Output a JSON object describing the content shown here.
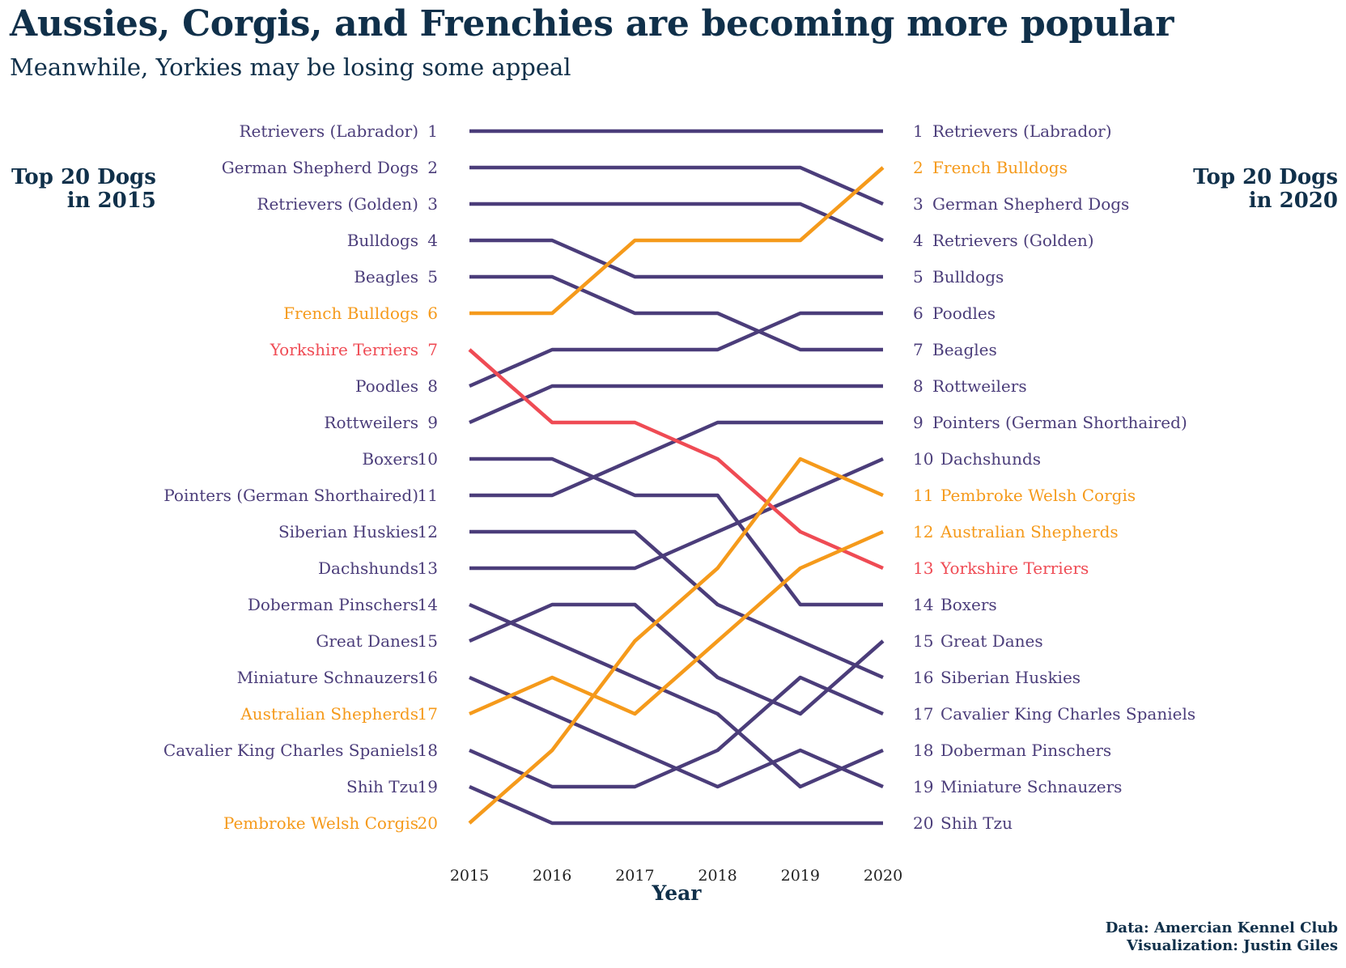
{
  "title": "Aussies, Corgis, and Frenchies are becoming more popular",
  "subtitle": "Meanwhile, Yorkies may be losing some appeal",
  "left_heading": [
    "Top 20 Dogs",
    "in 2015"
  ],
  "right_heading": [
    "Top 20 Dogs",
    "in 2020"
  ],
  "caption": [
    "Data: Amercian Kennel Club",
    "Visualization: Justin Giles"
  ],
  "colors": {
    "default": "#4b3d7a",
    "highlight": "#f59a1b",
    "decline": "#ef4b54",
    "text": "#10304a"
  },
  "chart_data": {
    "type": "line",
    "xlabel": "Year",
    "x": [
      2015,
      2016,
      2017,
      2018,
      2019,
      2020
    ],
    "y_reversed": true,
    "ylim": [
      1,
      20
    ],
    "series": [
      {
        "name": "Retrievers (Labrador)",
        "color": "default",
        "values": [
          1,
          1,
          1,
          1,
          1,
          1
        ]
      },
      {
        "name": "German Shepherd Dogs",
        "color": "default",
        "values": [
          2,
          2,
          2,
          2,
          2,
          3
        ]
      },
      {
        "name": "Retrievers (Golden)",
        "color": "default",
        "values": [
          3,
          3,
          3,
          3,
          3,
          4
        ]
      },
      {
        "name": "Bulldogs",
        "color": "default",
        "values": [
          4,
          4,
          5,
          5,
          5,
          5
        ]
      },
      {
        "name": "Beagles",
        "color": "default",
        "values": [
          5,
          5,
          6,
          6,
          7,
          7
        ]
      },
      {
        "name": "French Bulldogs",
        "color": "highlight",
        "values": [
          6,
          6,
          4,
          4,
          4,
          2
        ]
      },
      {
        "name": "Yorkshire Terriers",
        "color": "decline",
        "values": [
          7,
          9,
          9,
          10,
          12,
          13
        ]
      },
      {
        "name": "Poodles",
        "color": "default",
        "values": [
          8,
          7,
          7,
          7,
          6,
          6
        ]
      },
      {
        "name": "Rottweilers",
        "color": "default",
        "values": [
          9,
          8,
          8,
          8,
          8,
          8
        ]
      },
      {
        "name": "Boxers",
        "color": "default",
        "values": [
          10,
          10,
          11,
          11,
          14,
          14
        ]
      },
      {
        "name": "Pointers (German Shorthaired)",
        "color": "default",
        "values": [
          11,
          11,
          10,
          9,
          9,
          9
        ]
      },
      {
        "name": "Siberian Huskies",
        "color": "default",
        "values": [
          12,
          12,
          12,
          14,
          15,
          16
        ]
      },
      {
        "name": "Dachshunds",
        "color": "default",
        "values": [
          13,
          13,
          13,
          12,
          11,
          10
        ]
      },
      {
        "name": "Doberman Pinschers",
        "color": "default",
        "values": [
          14,
          15,
          16,
          17,
          19,
          18
        ]
      },
      {
        "name": "Great Danes",
        "color": "default",
        "values": [
          15,
          14,
          14,
          16,
          17,
          15
        ]
      },
      {
        "name": "Miniature Schnauzers",
        "color": "default",
        "values": [
          16,
          17,
          18,
          19,
          18,
          19
        ]
      },
      {
        "name": "Australian Shepherds",
        "color": "highlight",
        "values": [
          17,
          16,
          17,
          15,
          13,
          12
        ]
      },
      {
        "name": "Cavalier King Charles Spaniels",
        "color": "default",
        "values": [
          18,
          19,
          19,
          18,
          16,
          17
        ]
      },
      {
        "name": "Shih Tzu",
        "color": "default",
        "values": [
          19,
          20,
          20,
          20,
          20,
          20
        ]
      },
      {
        "name": "Pembroke Welsh Corgis",
        "color": "highlight",
        "values": [
          20,
          18,
          15,
          13,
          10,
          11
        ]
      }
    ]
  }
}
